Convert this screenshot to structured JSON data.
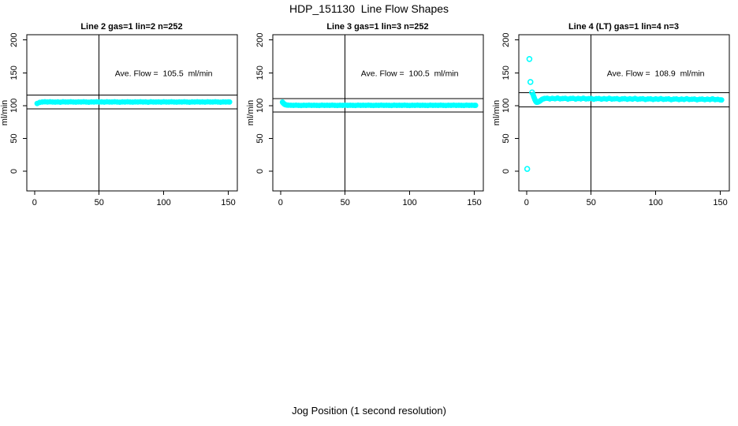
{
  "figure": {
    "title": "HDP_151130  Line Flow Shapes",
    "xlabel": "Jog Position (1 second resolution)"
  },
  "colors": {
    "point": "#00FFFF",
    "axis": "#000000",
    "background": "#FFFFFF",
    "text": "#000000"
  },
  "chart_data": [
    {
      "type": "scatter",
      "title": "Line 2 gas=1 lin=2 n=252",
      "line": "Line 2",
      "gas": 1,
      "lin": 2,
      "n": 252,
      "annotation": "Ave. Flow =  105.5  ml/min",
      "ave_flow_ml_min": 105.5,
      "ylabel": "ml/min",
      "xlim": [
        -6,
        157
      ],
      "ylim": [
        -30,
        208
      ],
      "xticks": [
        0,
        50,
        100,
        150
      ],
      "yticks": [
        0,
        50,
        100,
        150,
        200
      ],
      "vline_x": 50,
      "hlines": [
        116.1,
        95.0
      ],
      "annotation_xy": [
        100,
        150
      ],
      "outliers": [],
      "points": [
        [
          2,
          103.2
        ],
        [
          4,
          104.9
        ],
        [
          6,
          105.4
        ],
        [
          8,
          105.7
        ],
        [
          10,
          105.4
        ],
        [
          12,
          105.8
        ],
        [
          14,
          105.5
        ],
        [
          16,
          105.3
        ],
        [
          18,
          105.6
        ],
        [
          20,
          105.2
        ],
        [
          22,
          105.7
        ],
        [
          24,
          105.5
        ],
        [
          26,
          105.4
        ],
        [
          28,
          105.8
        ],
        [
          30,
          105.5
        ],
        [
          32,
          105.3
        ],
        [
          34,
          105.6
        ],
        [
          36,
          105.4
        ],
        [
          38,
          105.7
        ],
        [
          40,
          105.5
        ],
        [
          42,
          105.2
        ],
        [
          44,
          105.6
        ],
        [
          46,
          105.5
        ],
        [
          48,
          105.8
        ],
        [
          50,
          105.4
        ],
        [
          52,
          105.6
        ],
        [
          54,
          105.3
        ],
        [
          56,
          105.7
        ],
        [
          58,
          105.5
        ],
        [
          60,
          105.4
        ],
        [
          62,
          105.8
        ],
        [
          64,
          105.5
        ],
        [
          66,
          105.2
        ],
        [
          68,
          105.6
        ],
        [
          70,
          105.4
        ],
        [
          72,
          105.7
        ],
        [
          74,
          105.5
        ],
        [
          76,
          105.3
        ],
        [
          78,
          105.6
        ],
        [
          80,
          105.5
        ],
        [
          82,
          105.8
        ],
        [
          84,
          105.4
        ],
        [
          86,
          105.6
        ],
        [
          88,
          105.2
        ],
        [
          90,
          105.7
        ],
        [
          92,
          105.5
        ],
        [
          94,
          105.4
        ],
        [
          96,
          105.6
        ],
        [
          98,
          105.3
        ],
        [
          100,
          105.7
        ],
        [
          102,
          105.5
        ],
        [
          104,
          105.4
        ],
        [
          106,
          105.8
        ],
        [
          108,
          105.5
        ],
        [
          110,
          105.3
        ],
        [
          112,
          105.6
        ],
        [
          114,
          105.4
        ],
        [
          116,
          105.7
        ],
        [
          118,
          105.5
        ],
        [
          120,
          105.2
        ],
        [
          122,
          105.6
        ],
        [
          124,
          105.5
        ],
        [
          126,
          105.8
        ],
        [
          128,
          105.4
        ],
        [
          130,
          105.6
        ],
        [
          132,
          105.3
        ],
        [
          134,
          105.7
        ],
        [
          136,
          105.5
        ],
        [
          138,
          105.4
        ],
        [
          140,
          105.8
        ],
        [
          142,
          105.5
        ],
        [
          144,
          105.2
        ],
        [
          146,
          105.6
        ],
        [
          148,
          105.4
        ],
        [
          150,
          105.6
        ],
        [
          151,
          105.5
        ]
      ]
    },
    {
      "type": "scatter",
      "title": "Line 3 gas=1 lin=3 n=252",
      "line": "Line 3",
      "gas": 1,
      "lin": 3,
      "n": 252,
      "annotation": "Ave. Flow =  100.5  ml/min",
      "ave_flow_ml_min": 100.5,
      "ylabel": "ml/min",
      "xlim": [
        -6,
        157
      ],
      "ylim": [
        -30,
        208
      ],
      "xticks": [
        0,
        50,
        100,
        150
      ],
      "yticks": [
        0,
        50,
        100,
        150,
        200
      ],
      "vline_x": 50,
      "hlines": [
        110.6,
        90.5
      ],
      "annotation_xy": [
        100,
        150
      ],
      "outliers": [],
      "points": [
        [
          1.5,
          105.3
        ],
        [
          2,
          104.0
        ],
        [
          2.5,
          103.0
        ],
        [
          3,
          102.2
        ],
        [
          3.5,
          101.6
        ],
        [
          4,
          101.2
        ],
        [
          5,
          100.8
        ],
        [
          6,
          100.6
        ],
        [
          8,
          100.5
        ],
        [
          10,
          100.3
        ],
        [
          12,
          100.6
        ],
        [
          14,
          100.4
        ],
        [
          16,
          100.2
        ],
        [
          18,
          100.5
        ],
        [
          20,
          100.4
        ],
        [
          22,
          100.6
        ],
        [
          24,
          100.3
        ],
        [
          26,
          100.5
        ],
        [
          28,
          100.4
        ],
        [
          30,
          100.2
        ],
        [
          32,
          100.6
        ],
        [
          34,
          100.4
        ],
        [
          36,
          100.5
        ],
        [
          38,
          100.3
        ],
        [
          40,
          100.6
        ],
        [
          42,
          100.4
        ],
        [
          44,
          100.2
        ],
        [
          46,
          100.5
        ],
        [
          48,
          100.4
        ],
        [
          50,
          100.6
        ],
        [
          52,
          100.3
        ],
        [
          54,
          100.5
        ],
        [
          56,
          100.4
        ],
        [
          58,
          100.2
        ],
        [
          60,
          100.6
        ],
        [
          62,
          100.4
        ],
        [
          64,
          100.5
        ],
        [
          66,
          100.3
        ],
        [
          68,
          100.6
        ],
        [
          70,
          100.4
        ],
        [
          72,
          100.2
        ],
        [
          74,
          100.5
        ],
        [
          76,
          100.4
        ],
        [
          78,
          100.6
        ],
        [
          80,
          100.3
        ],
        [
          82,
          100.5
        ],
        [
          84,
          100.4
        ],
        [
          86,
          100.2
        ],
        [
          88,
          100.6
        ],
        [
          90,
          100.4
        ],
        [
          92,
          100.5
        ],
        [
          94,
          100.3
        ],
        [
          96,
          100.6
        ],
        [
          98,
          100.4
        ],
        [
          100,
          100.2
        ],
        [
          102,
          100.5
        ],
        [
          104,
          100.4
        ],
        [
          106,
          100.6
        ],
        [
          108,
          100.3
        ],
        [
          110,
          100.5
        ],
        [
          112,
          100.4
        ],
        [
          114,
          100.2
        ],
        [
          116,
          100.6
        ],
        [
          118,
          100.4
        ],
        [
          120,
          100.5
        ],
        [
          122,
          100.3
        ],
        [
          124,
          100.6
        ],
        [
          126,
          100.4
        ],
        [
          128,
          100.2
        ],
        [
          130,
          100.5
        ],
        [
          132,
          100.4
        ],
        [
          134,
          100.6
        ],
        [
          136,
          100.3
        ],
        [
          138,
          100.5
        ],
        [
          140,
          100.4
        ],
        [
          142,
          100.2
        ],
        [
          144,
          100.6
        ],
        [
          146,
          100.4
        ],
        [
          148,
          100.5
        ],
        [
          150,
          100.3
        ],
        [
          151,
          100.4
        ]
      ]
    },
    {
      "type": "scatter",
      "title": "Line 4 (LT) gas=1 lin=4 n=3",
      "line": "Line 4 (LT)",
      "gas": 1,
      "lin": 4,
      "n": 3,
      "annotation": "Ave. Flow =  108.9  ml/min",
      "ave_flow_ml_min": 108.9,
      "ylabel": "ml/min",
      "xlim": [
        -6,
        157
      ],
      "ylim": [
        -30,
        208
      ],
      "xticks": [
        0,
        50,
        100,
        150
      ],
      "yticks": [
        0,
        50,
        100,
        150,
        200
      ],
      "vline_x": 50,
      "hlines": [
        119.8,
        98.0
      ],
      "annotation_xy": [
        100,
        150
      ],
      "outliers": [
        [
          0.5,
          3.5
        ],
        [
          2.2,
          171
        ],
        [
          3,
          136
        ],
        [
          4.3,
          120
        ]
      ],
      "points": [
        [
          5,
          117
        ],
        [
          5.5,
          114
        ],
        [
          6,
          111.5
        ],
        [
          6.5,
          109
        ],
        [
          7,
          107
        ],
        [
          7.5,
          105.5
        ],
        [
          8,
          105
        ],
        [
          9,
          105.5
        ],
        [
          10,
          106.5
        ],
        [
          11,
          108
        ],
        [
          12,
          109.5
        ],
        [
          13,
          110.3
        ],
        [
          14,
          110.8
        ],
        [
          16,
          111.2
        ],
        [
          18,
          110.2
        ],
        [
          20,
          111.0
        ],
        [
          22,
          110.4
        ],
        [
          24,
          111.4
        ],
        [
          26,
          110.3
        ],
        [
          28,
          110.7
        ],
        [
          30,
          111.0
        ],
        [
          32,
          109.9
        ],
        [
          34,
          110.7
        ],
        [
          36,
          111.0
        ],
        [
          38,
          110.0
        ],
        [
          40,
          110.8
        ],
        [
          42,
          110.2
        ],
        [
          44,
          111.2
        ],
        [
          46,
          110.1
        ],
        [
          48,
          110.5
        ],
        [
          50,
          110.8
        ],
        [
          52,
          109.7
        ],
        [
          54,
          110.5
        ],
        [
          56,
          110.7
        ],
        [
          58,
          109.8
        ],
        [
          60,
          110.6
        ],
        [
          62,
          110.0
        ],
        [
          64,
          111.0
        ],
        [
          66,
          109.9
        ],
        [
          68,
          110.3
        ],
        [
          70,
          110.6
        ],
        [
          72,
          109.5
        ],
        [
          74,
          110.3
        ],
        [
          76,
          110.5
        ],
        [
          78,
          109.6
        ],
        [
          80,
          110.4
        ],
        [
          82,
          109.8
        ],
        [
          84,
          110.8
        ],
        [
          86,
          109.7
        ],
        [
          88,
          110.1
        ],
        [
          90,
          110.4
        ],
        [
          92,
          109.3
        ],
        [
          94,
          110.1
        ],
        [
          96,
          110.3
        ],
        [
          98,
          109.4
        ],
        [
          100,
          110.2
        ],
        [
          102,
          109.6
        ],
        [
          104,
          110.6
        ],
        [
          106,
          109.5
        ],
        [
          108,
          109.9
        ],
        [
          110,
          110.2
        ],
        [
          112,
          109.1
        ],
        [
          114,
          109.9
        ],
        [
          116,
          110.1
        ],
        [
          118,
          109.2
        ],
        [
          120,
          110.0
        ],
        [
          122,
          109.4
        ],
        [
          124,
          110.4
        ],
        [
          126,
          109.3
        ],
        [
          128,
          109.7
        ],
        [
          130,
          110.0
        ],
        [
          132,
          108.9
        ],
        [
          134,
          109.7
        ],
        [
          136,
          109.9
        ],
        [
          138,
          109.0
        ],
        [
          140,
          109.8
        ],
        [
          142,
          109.2
        ],
        [
          144,
          110.2
        ],
        [
          146,
          109.1
        ],
        [
          148,
          109.5
        ],
        [
          150,
          108.8
        ],
        [
          151,
          108.6
        ]
      ]
    }
  ]
}
